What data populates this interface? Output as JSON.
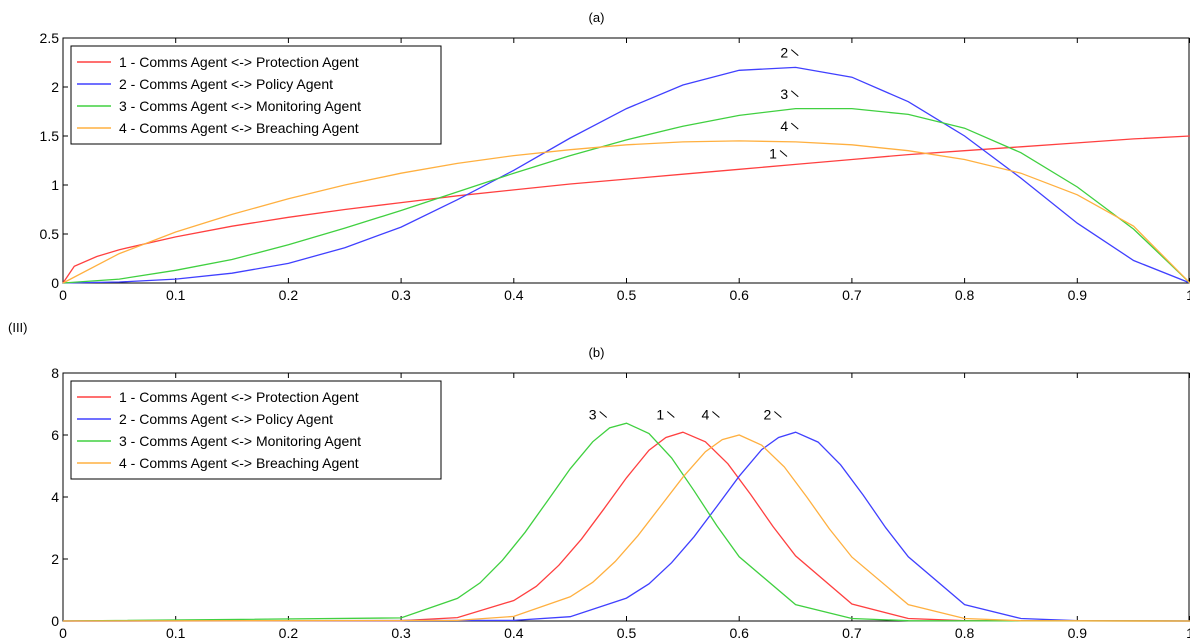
{
  "figure_label": "(III)",
  "chart_data": [
    {
      "type": "line",
      "title": "(a)",
      "xlim": [
        0,
        1
      ],
      "ylim": [
        0,
        2.5
      ],
      "xticks": [
        "0",
        "0.1",
        "0.2",
        "0.3",
        "0.4",
        "0.5",
        "0.6",
        "0.7",
        "0.8",
        "0.9",
        "1"
      ],
      "yticks": [
        "0",
        "0.5",
        "1",
        "1.5",
        "2",
        "2.5"
      ],
      "legend": "top-left",
      "series": [
        {
          "name": "1 - Comms Agent <-> Protection Agent",
          "color": "#ff4040",
          "x": [
            0,
            0.01,
            0.03,
            0.05,
            0.1,
            0.15,
            0.2,
            0.25,
            0.3,
            0.35,
            0.4,
            0.45,
            0.5,
            0.55,
            0.6,
            0.65,
            0.7,
            0.75,
            0.8,
            0.85,
            0.9,
            0.95,
            1.0
          ],
          "y": [
            0,
            0.17,
            0.27,
            0.34,
            0.47,
            0.58,
            0.67,
            0.75,
            0.82,
            0.89,
            0.95,
            1.01,
            1.06,
            1.11,
            1.16,
            1.21,
            1.26,
            1.31,
            1.35,
            1.39,
            1.43,
            1.47,
            1.5
          ],
          "annotation": {
            "text": "1",
            "x": 0.63,
            "y": 1.27
          }
        },
        {
          "name": "2 - Comms Agent <-> Policy Agent",
          "color": "#4040ff",
          "x": [
            0,
            0.05,
            0.1,
            0.15,
            0.2,
            0.25,
            0.3,
            0.35,
            0.4,
            0.45,
            0.5,
            0.55,
            0.6,
            0.65,
            0.7,
            0.75,
            0.8,
            0.85,
            0.9,
            0.95,
            1.0
          ],
          "y": [
            0,
            0.01,
            0.04,
            0.1,
            0.2,
            0.36,
            0.57,
            0.85,
            1.15,
            1.48,
            1.78,
            2.02,
            2.17,
            2.2,
            2.1,
            1.85,
            1.5,
            1.07,
            0.61,
            0.23,
            0
          ],
          "annotation": {
            "text": "2",
            "x": 0.64,
            "y": 2.3
          }
        },
        {
          "name": "3 - Comms Agent <-> Monitoring Agent",
          "color": "#40d040",
          "x": [
            0,
            0.05,
            0.1,
            0.15,
            0.2,
            0.25,
            0.3,
            0.35,
            0.4,
            0.45,
            0.5,
            0.55,
            0.6,
            0.65,
            0.7,
            0.75,
            0.8,
            0.85,
            0.9,
            0.95,
            1.0
          ],
          "y": [
            0,
            0.04,
            0.13,
            0.24,
            0.39,
            0.56,
            0.74,
            0.93,
            1.12,
            1.3,
            1.46,
            1.6,
            1.71,
            1.78,
            1.78,
            1.72,
            1.58,
            1.33,
            0.98,
            0.55,
            0
          ],
          "annotation": {
            "text": "3",
            "x": 0.64,
            "y": 1.88
          }
        },
        {
          "name": "4 - Comms Agent <-> Breaching Agent",
          "color": "#ffb040",
          "x": [
            0,
            0.05,
            0.1,
            0.15,
            0.2,
            0.25,
            0.3,
            0.35,
            0.4,
            0.45,
            0.5,
            0.55,
            0.6,
            0.65,
            0.7,
            0.75,
            0.8,
            0.85,
            0.9,
            0.95,
            1.0
          ],
          "y": [
            0,
            0.3,
            0.52,
            0.7,
            0.86,
            1.0,
            1.12,
            1.22,
            1.3,
            1.36,
            1.41,
            1.44,
            1.45,
            1.44,
            1.41,
            1.35,
            1.26,
            1.12,
            0.9,
            0.58,
            0
          ],
          "annotation": {
            "text": "4",
            "x": 0.64,
            "y": 1.55
          }
        }
      ]
    },
    {
      "type": "line",
      "title": "(b)",
      "xlim": [
        0,
        1
      ],
      "ylim": [
        0,
        8
      ],
      "xticks": [
        "0",
        "0.1",
        "0.2",
        "0.3",
        "0.4",
        "0.5",
        "0.6",
        "0.7",
        "0.8",
        "0.9",
        "1"
      ],
      "yticks": [
        "0",
        "2",
        "4",
        "6",
        "8"
      ],
      "legend": "top-left",
      "series": [
        {
          "name": "1 - Comms Agent <-> Protection Agent",
          "color": "#ff4040",
          "x": [
            0,
            0.3,
            0.35,
            0.4,
            0.42,
            0.44,
            0.46,
            0.48,
            0.5,
            0.52,
            0.535,
            0.55,
            0.57,
            0.59,
            0.61,
            0.63,
            0.65,
            0.7,
            0.75,
            0.8,
            1.0
          ],
          "y": [
            0,
            0.01,
            0.11,
            0.66,
            1.12,
            1.8,
            2.64,
            3.62,
            4.62,
            5.51,
            5.92,
            6.09,
            5.78,
            5.07,
            4.09,
            3.05,
            2.1,
            0.55,
            0.08,
            0.01,
            0
          ],
          "annotation": {
            "text": "1",
            "x": 0.53,
            "y": 6.5
          }
        },
        {
          "name": "2 - Comms Agent <-> Policy Agent",
          "color": "#4040ff",
          "x": [
            0,
            0.4,
            0.45,
            0.5,
            0.52,
            0.54,
            0.56,
            0.58,
            0.6,
            0.62,
            0.635,
            0.65,
            0.67,
            0.69,
            0.71,
            0.73,
            0.75,
            0.8,
            0.85,
            0.9,
            1.0
          ],
          "y": [
            0,
            0.02,
            0.14,
            0.74,
            1.2,
            1.88,
            2.72,
            3.69,
            4.67,
            5.53,
            5.92,
            6.09,
            5.77,
            5.04,
            4.06,
            3.01,
            2.07,
            0.53,
            0.08,
            0.01,
            0
          ],
          "annotation": {
            "text": "2",
            "x": 0.625,
            "y": 6.5
          }
        },
        {
          "name": "3 - Comms Agent <-> Monitoring Agent",
          "color": "#40d040",
          "x": [
            0,
            0.3,
            0.35,
            0.37,
            0.39,
            0.41,
            0.43,
            0.45,
            0.47,
            0.485,
            0.5,
            0.52,
            0.54,
            0.56,
            0.58,
            0.6,
            0.65,
            0.7,
            0.75,
            1.0
          ],
          "y": [
            0,
            0.1,
            0.73,
            1.23,
            1.96,
            2.86,
            3.88,
            4.91,
            5.78,
            6.23,
            6.38,
            6.05,
            5.26,
            4.2,
            3.08,
            2.07,
            0.53,
            0.08,
            0.01,
            0
          ],
          "annotation": {
            "text": "3",
            "x": 0.47,
            "y": 6.5
          }
        },
        {
          "name": "4 - Comms Agent <-> Breaching Agent",
          "color": "#ffb040",
          "x": [
            0,
            0.35,
            0.4,
            0.45,
            0.47,
            0.49,
            0.51,
            0.53,
            0.55,
            0.57,
            0.585,
            0.6,
            0.62,
            0.64,
            0.66,
            0.68,
            0.7,
            0.75,
            0.8,
            0.85,
            1.0
          ],
          "y": [
            0,
            0.02,
            0.15,
            0.78,
            1.25,
            1.92,
            2.75,
            3.69,
            4.64,
            5.46,
            5.85,
            6.0,
            5.67,
            4.97,
            4.0,
            2.97,
            2.06,
            0.53,
            0.08,
            0.01,
            0
          ],
          "annotation": {
            "text": "4",
            "x": 0.57,
            "y": 6.5
          }
        }
      ]
    }
  ]
}
